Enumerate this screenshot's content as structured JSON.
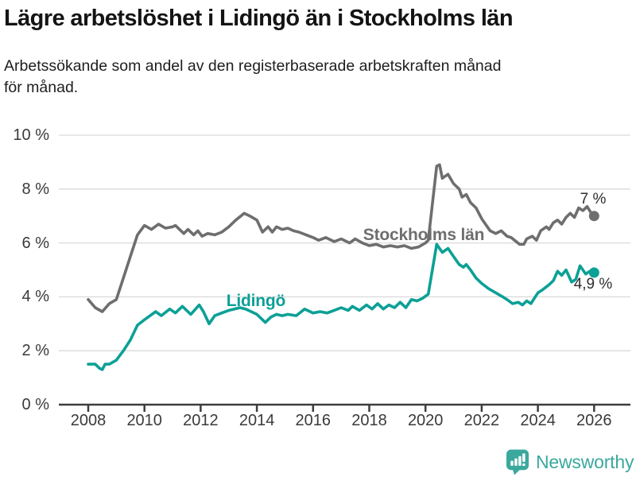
{
  "branding": {
    "logo_text": "Newsworthy",
    "logo_color": "#3ba89d"
  },
  "chart_data": {
    "type": "line",
    "title": "Lägre arbetslöshet i Lidingö än i Stockholms län",
    "subtitle_lines": [
      "Arbetssökande som andel av den registerbaserade arbetskraften månad",
      "för månad."
    ],
    "unit": "%",
    "grid": "horizontal",
    "legend_position": "inline-labels",
    "x_axis": {
      "tick_values": [
        2008,
        2010,
        2012,
        2014,
        2016,
        2018,
        2020,
        2022,
        2024,
        2026
      ],
      "tick_labels": [
        "2008",
        "2010",
        "2012",
        "2014",
        "2016",
        "2018",
        "2020",
        "2022",
        "2024",
        "2026"
      ],
      "range_years": [
        2007,
        2027.3
      ]
    },
    "y_axis": {
      "tick_values": [
        0,
        2,
        4,
        6,
        8,
        10
      ],
      "tick_labels": [
        "0 %",
        "2 %",
        "4 %",
        "6 %",
        "8 %",
        "10 %"
      ],
      "range": [
        0,
        10.6
      ]
    },
    "colors": {
      "grid": "#d9d9d9",
      "axis": "#3d3d3d",
      "tick_text": "#3a3a3a"
    },
    "series": [
      {
        "name": "Stockholms län",
        "color": "#6e6e6e",
        "end_label": "7 %",
        "last_value": 7.0,
        "points": [
          [
            2008.0,
            3.9
          ],
          [
            2008.25,
            3.6
          ],
          [
            2008.5,
            3.45
          ],
          [
            2008.75,
            3.75
          ],
          [
            2009.0,
            3.9
          ],
          [
            2009.25,
            4.7
          ],
          [
            2009.5,
            5.5
          ],
          [
            2009.75,
            6.3
          ],
          [
            2010.0,
            6.65
          ],
          [
            2010.25,
            6.5
          ],
          [
            2010.5,
            6.7
          ],
          [
            2010.75,
            6.55
          ],
          [
            2011.0,
            6.6
          ],
          [
            2011.1,
            6.65
          ],
          [
            2011.4,
            6.35
          ],
          [
            2011.55,
            6.5
          ],
          [
            2011.75,
            6.3
          ],
          [
            2011.9,
            6.45
          ],
          [
            2012.05,
            6.25
          ],
          [
            2012.25,
            6.35
          ],
          [
            2012.5,
            6.3
          ],
          [
            2012.75,
            6.4
          ],
          [
            2013.0,
            6.6
          ],
          [
            2013.25,
            6.85
          ],
          [
            2013.55,
            7.1
          ],
          [
            2013.75,
            7.0
          ],
          [
            2014.0,
            6.85
          ],
          [
            2014.2,
            6.4
          ],
          [
            2014.4,
            6.6
          ],
          [
            2014.55,
            6.4
          ],
          [
            2014.7,
            6.6
          ],
          [
            2014.9,
            6.5
          ],
          [
            2015.1,
            6.55
          ],
          [
            2015.3,
            6.45
          ],
          [
            2015.5,
            6.4
          ],
          [
            2015.75,
            6.3
          ],
          [
            2016.0,
            6.2
          ],
          [
            2016.2,
            6.1
          ],
          [
            2016.45,
            6.2
          ],
          [
            2016.75,
            6.05
          ],
          [
            2017.0,
            6.15
          ],
          [
            2017.3,
            6.0
          ],
          [
            2017.5,
            6.15
          ],
          [
            2017.75,
            6.0
          ],
          [
            2018.0,
            5.9
          ],
          [
            2018.25,
            5.95
          ],
          [
            2018.5,
            5.85
          ],
          [
            2018.75,
            5.9
          ],
          [
            2019.0,
            5.85
          ],
          [
            2019.25,
            5.9
          ],
          [
            2019.5,
            5.8
          ],
          [
            2019.75,
            5.85
          ],
          [
            2020.0,
            6.0
          ],
          [
            2020.1,
            6.1
          ],
          [
            2020.4,
            8.85
          ],
          [
            2020.5,
            8.9
          ],
          [
            2020.6,
            8.4
          ],
          [
            2020.8,
            8.55
          ],
          [
            2021.0,
            8.2
          ],
          [
            2021.2,
            8.0
          ],
          [
            2021.3,
            7.7
          ],
          [
            2021.45,
            7.8
          ],
          [
            2021.6,
            7.5
          ],
          [
            2021.8,
            7.3
          ],
          [
            2022.0,
            6.9
          ],
          [
            2022.3,
            6.45
          ],
          [
            2022.5,
            6.35
          ],
          [
            2022.7,
            6.45
          ],
          [
            2022.9,
            6.25
          ],
          [
            2023.05,
            6.2
          ],
          [
            2023.35,
            5.95
          ],
          [
            2023.5,
            5.95
          ],
          [
            2023.6,
            6.15
          ],
          [
            2023.8,
            6.25
          ],
          [
            2023.95,
            6.1
          ],
          [
            2024.1,
            6.45
          ],
          [
            2024.3,
            6.6
          ],
          [
            2024.4,
            6.5
          ],
          [
            2024.55,
            6.75
          ],
          [
            2024.7,
            6.85
          ],
          [
            2024.85,
            6.7
          ],
          [
            2025.0,
            6.95
          ],
          [
            2025.15,
            7.1
          ],
          [
            2025.3,
            6.95
          ],
          [
            2025.45,
            7.3
          ],
          [
            2025.6,
            7.2
          ],
          [
            2025.75,
            7.35
          ],
          [
            2025.9,
            7.1
          ],
          [
            2026.0,
            7.0
          ]
        ]
      },
      {
        "name": "Lidingö",
        "color": "#0ca096",
        "end_label": "4,9 %",
        "last_value": 4.9,
        "points": [
          [
            2008.0,
            1.5
          ],
          [
            2008.25,
            1.5
          ],
          [
            2008.4,
            1.35
          ],
          [
            2008.5,
            1.3
          ],
          [
            2008.6,
            1.5
          ],
          [
            2008.75,
            1.5
          ],
          [
            2009.0,
            1.65
          ],
          [
            2009.25,
            2.0
          ],
          [
            2009.5,
            2.4
          ],
          [
            2009.75,
            2.95
          ],
          [
            2010.0,
            3.15
          ],
          [
            2010.2,
            3.3
          ],
          [
            2010.4,
            3.45
          ],
          [
            2010.6,
            3.3
          ],
          [
            2010.9,
            3.55
          ],
          [
            2011.1,
            3.4
          ],
          [
            2011.35,
            3.65
          ],
          [
            2011.65,
            3.35
          ],
          [
            2011.95,
            3.7
          ],
          [
            2012.1,
            3.45
          ],
          [
            2012.3,
            3.0
          ],
          [
            2012.5,
            3.3
          ],
          [
            2012.75,
            3.4
          ],
          [
            2013.0,
            3.5
          ],
          [
            2013.2,
            3.55
          ],
          [
            2013.4,
            3.6
          ],
          [
            2013.6,
            3.55
          ],
          [
            2013.8,
            3.45
          ],
          [
            2014.0,
            3.35
          ],
          [
            2014.3,
            3.05
          ],
          [
            2014.5,
            3.25
          ],
          [
            2014.7,
            3.35
          ],
          [
            2014.9,
            3.3
          ],
          [
            2015.1,
            3.35
          ],
          [
            2015.4,
            3.3
          ],
          [
            2015.7,
            3.55
          ],
          [
            2016.0,
            3.4
          ],
          [
            2016.25,
            3.45
          ],
          [
            2016.5,
            3.4
          ],
          [
            2016.75,
            3.5
          ],
          [
            2017.0,
            3.6
          ],
          [
            2017.25,
            3.5
          ],
          [
            2017.4,
            3.65
          ],
          [
            2017.65,
            3.5
          ],
          [
            2017.9,
            3.7
          ],
          [
            2018.1,
            3.55
          ],
          [
            2018.3,
            3.75
          ],
          [
            2018.5,
            3.55
          ],
          [
            2018.7,
            3.7
          ],
          [
            2018.9,
            3.6
          ],
          [
            2019.1,
            3.8
          ],
          [
            2019.3,
            3.6
          ],
          [
            2019.5,
            3.9
          ],
          [
            2019.7,
            3.85
          ],
          [
            2019.9,
            3.95
          ],
          [
            2020.1,
            4.1
          ],
          [
            2020.4,
            5.95
          ],
          [
            2020.6,
            5.65
          ],
          [
            2020.8,
            5.8
          ],
          [
            2021.0,
            5.5
          ],
          [
            2021.2,
            5.2
          ],
          [
            2021.35,
            5.1
          ],
          [
            2021.45,
            5.2
          ],
          [
            2021.6,
            5.0
          ],
          [
            2021.8,
            4.7
          ],
          [
            2022.0,
            4.5
          ],
          [
            2022.25,
            4.3
          ],
          [
            2022.5,
            4.15
          ],
          [
            2022.75,
            4.0
          ],
          [
            2022.9,
            3.9
          ],
          [
            2023.1,
            3.75
          ],
          [
            2023.3,
            3.8
          ],
          [
            2023.45,
            3.7
          ],
          [
            2023.6,
            3.85
          ],
          [
            2023.75,
            3.75
          ],
          [
            2024.0,
            4.15
          ],
          [
            2024.15,
            4.25
          ],
          [
            2024.4,
            4.45
          ],
          [
            2024.55,
            4.6
          ],
          [
            2024.7,
            4.95
          ],
          [
            2024.85,
            4.8
          ],
          [
            2025.0,
            5.0
          ],
          [
            2025.2,
            4.55
          ],
          [
            2025.35,
            4.65
          ],
          [
            2025.5,
            5.15
          ],
          [
            2025.7,
            4.85
          ],
          [
            2025.85,
            4.95
          ],
          [
            2026.0,
            4.9
          ]
        ]
      }
    ]
  }
}
